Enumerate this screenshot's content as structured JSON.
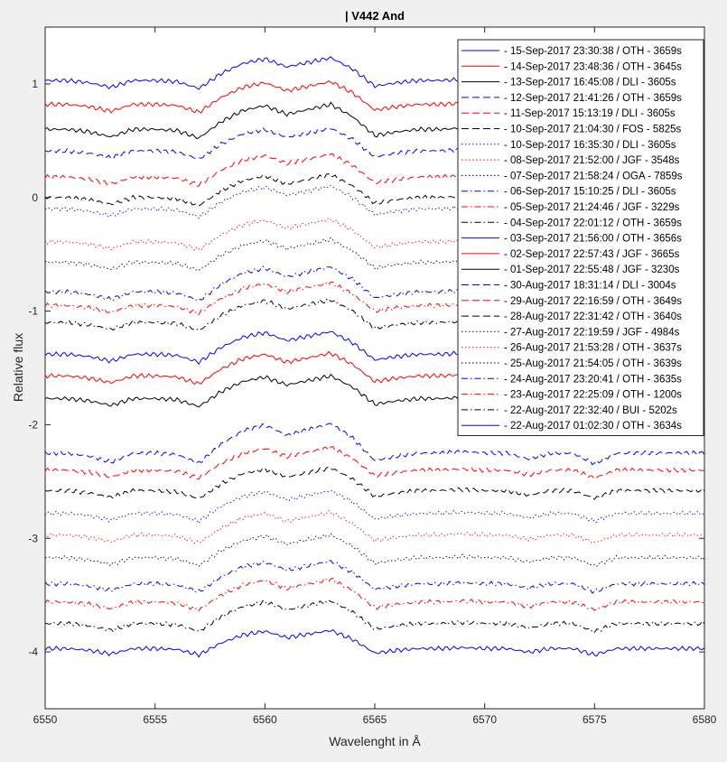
{
  "chart_data": {
    "type": "line",
    "title": "| V442 And",
    "xlabel": "Wavelenght in Å",
    "ylabel": "Relative flux",
    "xlim": [
      6550,
      6580
    ],
    "ylim": [
      -4.5,
      1.5
    ],
    "xticks": [
      6550,
      6555,
      6560,
      6565,
      6570,
      6575,
      6580
    ],
    "yticks": [
      1,
      0,
      -1,
      -2,
      -3,
      -4
    ],
    "legend_placement": "top-right",
    "colors": {
      "blue": "#0000ff",
      "red": "#ff0000",
      "black": "#000000"
    },
    "x": [
      6550,
      6551,
      6552,
      6553,
      6554,
      6555,
      6556,
      6557,
      6558,
      6559,
      6560,
      6561,
      6562,
      6563,
      6564,
      6565,
      6566,
      6567,
      6568,
      6569,
      6570,
      6571,
      6572,
      6573,
      6574,
      6575,
      6576,
      6577,
      6578,
      6579,
      6580
    ],
    "profile": [
      0,
      0,
      -0.02,
      -0.06,
      0,
      0,
      -0.01,
      -0.07,
      0.06,
      0.15,
      0.19,
      0.12,
      0.16,
      0.2,
      0.1,
      -0.05,
      -0.02,
      0,
      0,
      0.01,
      0,
      0,
      -0.04,
      0,
      0,
      -0.07,
      0,
      0,
      0,
      0,
      0
    ],
    "series": [
      {
        "name": "- 15-Sep-2017 23:30:38 / OTH - 3659s",
        "color": "blue",
        "style": "solid",
        "offset": 1.03,
        "scale": 1.0
      },
      {
        "name": "- 14-Sep-2017 23:48:36 / OTH - 3645s",
        "color": "red",
        "style": "solid",
        "offset": 0.82,
        "scale": 1.0
      },
      {
        "name": "- 13-Sep-2017 16:45:08 / DLI - 3605s",
        "color": "black",
        "style": "solid",
        "offset": 0.6,
        "scale": 1.1
      },
      {
        "name": "- 12-Sep-2017 21:41:26 / OTH - 3659s",
        "color": "blue",
        "style": "dashed",
        "offset": 0.41,
        "scale": 1.0
      },
      {
        "name": "- 11-Sep-2017 15:13:19 / DLI - 3605s",
        "color": "red",
        "style": "dashed",
        "offset": 0.18,
        "scale": 1.0
      },
      {
        "name": "- 10-Sep-2017 21:04:30 / FOS - 5825s",
        "color": "black",
        "style": "dashed",
        "offset": 0.0,
        "scale": 1.0
      },
      {
        "name": "- 10-Sep-2017 16:35:30 / DLI - 3605s",
        "color": "blue",
        "style": "dotted",
        "offset": -0.1,
        "scale": 1.0
      },
      {
        "name": "- 08-Sep-2017 21:52:00 / JGF - 3548s",
        "color": "red",
        "style": "dotted",
        "offset": -0.39,
        "scale": 1.0
      },
      {
        "name": "- 07-Sep-2017 21:58:24 / OGA - 7859s",
        "color": "black",
        "style": "dotted",
        "offset": -0.57,
        "scale": 1.0
      },
      {
        "name": "- 06-Sep-2017 15:10:25 / DLI - 3605s",
        "color": "blue",
        "style": "dashdot",
        "offset": -0.83,
        "scale": 1.1
      },
      {
        "name": "- 05-Sep-2017 21:24:46 / JGF - 3229s",
        "color": "red",
        "style": "dashdot",
        "offset": -0.95,
        "scale": 1.0
      },
      {
        "name": "- 04-Sep-2017 22:01:12 / OTH - 3659s",
        "color": "black",
        "style": "dashdot",
        "offset": -1.1,
        "scale": 1.0
      },
      {
        "name": "- 03-Sep-2017 21:56:00 / OTH - 3656s",
        "color": "blue",
        "style": "solid",
        "offset": -1.38,
        "scale": 1.0
      },
      {
        "name": "- 02-Sep-2017 22:57:43 / JGF - 3665s",
        "color": "red",
        "style": "solid",
        "offset": -1.57,
        "scale": 1.0
      },
      {
        "name": "- 01-Sep-2017 22:55:48 / JGF - 3230s",
        "color": "black",
        "style": "solid",
        "offset": -1.77,
        "scale": 1.0
      },
      {
        "name": "- 30-Aug-2017 18:31:14 / DLI - 3004s",
        "color": "blue",
        "style": "dashed",
        "offset": -2.25,
        "scale": 1.3
      },
      {
        "name": "- 29-Aug-2017 22:16:59 / OTH - 3649s",
        "color": "red",
        "style": "dashed",
        "offset": -2.4,
        "scale": 1.0
      },
      {
        "name": "- 28-Aug-2017 22:31:42 / OTH - 3640s",
        "color": "black",
        "style": "dashed",
        "offset": -2.58,
        "scale": 1.0
      },
      {
        "name": "- 27-Aug-2017 22:19:59 / JGF - 4984s",
        "color": "blue",
        "style": "dotted",
        "offset": -2.78,
        "scale": 1.0
      },
      {
        "name": "- 26-Aug-2017 21:53:28 / OTH - 3637s",
        "color": "red",
        "style": "dotted",
        "offset": -2.97,
        "scale": 1.0
      },
      {
        "name": "- 25-Aug-2017 21:54:05 / OTH - 3639s",
        "color": "black",
        "style": "dotted",
        "offset": -3.17,
        "scale": 1.0
      },
      {
        "name": "- 24-Aug-2017 23:20:41 / OTH - 3635s",
        "color": "blue",
        "style": "dashdot",
        "offset": -3.4,
        "scale": 1.0
      },
      {
        "name": "- 23-Aug-2017 22:25:09 / OTH - 1200s",
        "color": "red",
        "style": "dashdot",
        "offset": -3.56,
        "scale": 1.0
      },
      {
        "name": "- 22-Aug-2017 22:32:40 / BUI - 5202s",
        "color": "black",
        "style": "dashdot",
        "offset": -3.75,
        "scale": 1.0
      },
      {
        "name": "- 22-Aug-2017 01:02:30 / OTH - 3634s",
        "color": "blue",
        "style": "solid",
        "offset": -3.97,
        "scale": 0.8
      }
    ]
  }
}
